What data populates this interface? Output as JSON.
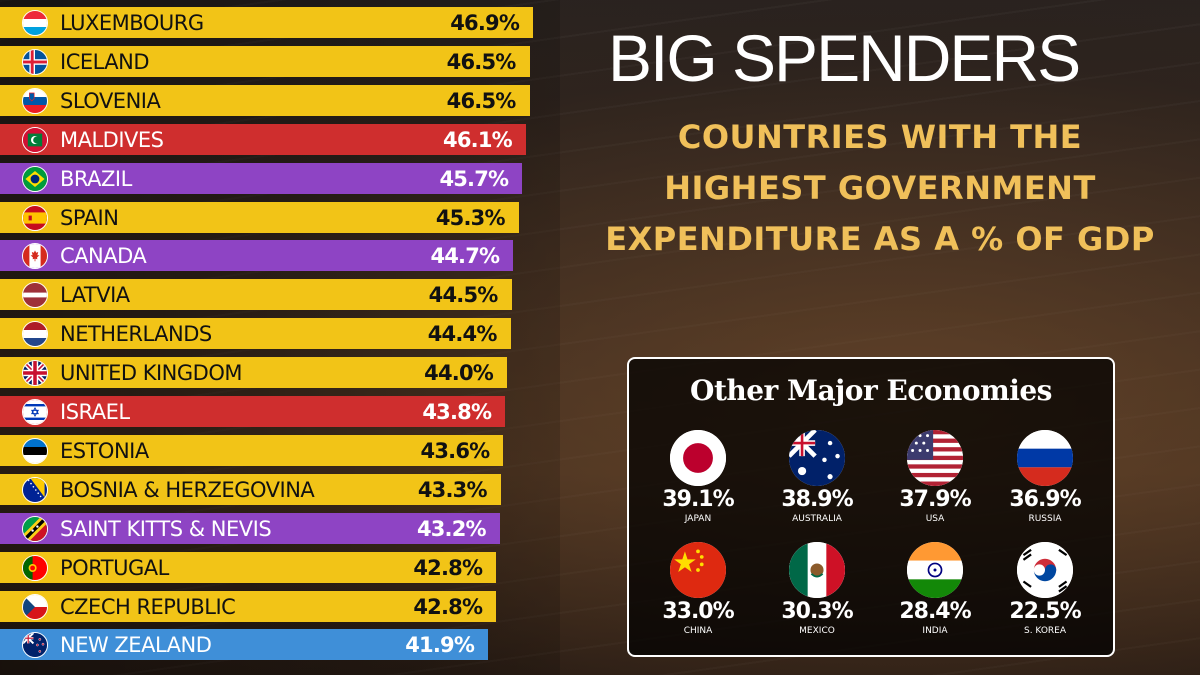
{
  "header": {
    "title": "BIG SPENDERS",
    "subtitle_lines": [
      "COUNTRIES WITH THE",
      "HIGHEST GOVERNMENT",
      "EXPENDITURE AS A % OF GDP"
    ]
  },
  "colors": {
    "yellow": "#f2c417",
    "purple": "#8e44c4",
    "red": "#cf2e2e",
    "blue": "#3f8fd8",
    "subtitle": "#f0c05a"
  },
  "chart_data": {
    "type": "bar",
    "orientation": "horizontal",
    "unit": "%",
    "categories": [
      "LUXEMBOURG",
      "ICELAND",
      "SLOVENIA",
      "MALDIVES",
      "BRAZIL",
      "SPAIN",
      "CANADA",
      "LATVIA",
      "NETHERLANDS",
      "UNITED KINGDOM",
      "ISRAEL",
      "ESTONIA",
      "BOSNIA & HERZEGOVINA",
      "SAINT KITTS & NEVIS",
      "PORTUGAL",
      "CZECH REPUBLIC",
      "NEW ZEALAND"
    ],
    "values": [
      46.9,
      46.5,
      46.5,
      46.1,
      45.7,
      45.3,
      44.7,
      44.5,
      44.4,
      44.0,
      43.8,
      43.6,
      43.3,
      43.2,
      42.8,
      42.8,
      41.9
    ],
    "labels": [
      "46.9%",
      "46.5%",
      "46.5%",
      "46.1%",
      "45.7%",
      "45.3%",
      "44.7%",
      "44.5%",
      "44.4%",
      "44.0%",
      "43.8%",
      "43.6%",
      "43.3%",
      "43.2%",
      "42.8%",
      "42.8%",
      "41.9%"
    ],
    "bar_colors": [
      "yellow",
      "yellow",
      "yellow",
      "red",
      "purple",
      "yellow",
      "purple",
      "yellow",
      "yellow",
      "yellow",
      "red",
      "yellow",
      "yellow",
      "purple",
      "yellow",
      "yellow",
      "blue"
    ],
    "flags": [
      "luxembourg-flag-icon",
      "iceland-flag-icon",
      "slovenia-flag-icon",
      "maldives-flag-icon",
      "brazil-flag-icon",
      "spain-flag-icon",
      "canada-flag-icon",
      "latvia-flag-icon",
      "netherlands-flag-icon",
      "uk-flag-icon",
      "israel-flag-icon",
      "estonia-flag-icon",
      "bosnia-flag-icon",
      "saint-kitts-flag-icon",
      "portugal-flag-icon",
      "czech-flag-icon",
      "new-zealand-flag-icon"
    ]
  },
  "other_economies": {
    "title": "Other Major Economies",
    "items": [
      {
        "name": "JAPAN",
        "value": "39.1%",
        "flag": "japan-flag-icon"
      },
      {
        "name": "AUSTRALIA",
        "value": "38.9%",
        "flag": "australia-flag-icon"
      },
      {
        "name": "USA",
        "value": "37.9%",
        "flag": "usa-flag-icon"
      },
      {
        "name": "RUSSIA",
        "value": "36.9%",
        "flag": "russia-flag-icon"
      },
      {
        "name": "CHINA",
        "value": "33.0%",
        "flag": "china-flag-icon"
      },
      {
        "name": "MEXICO",
        "value": "30.3%",
        "flag": "mexico-flag-icon"
      },
      {
        "name": "INDIA",
        "value": "28.4%",
        "flag": "india-flag-icon"
      },
      {
        "name": "S. KOREA",
        "value": "22.5%",
        "flag": "south-korea-flag-icon"
      }
    ]
  }
}
